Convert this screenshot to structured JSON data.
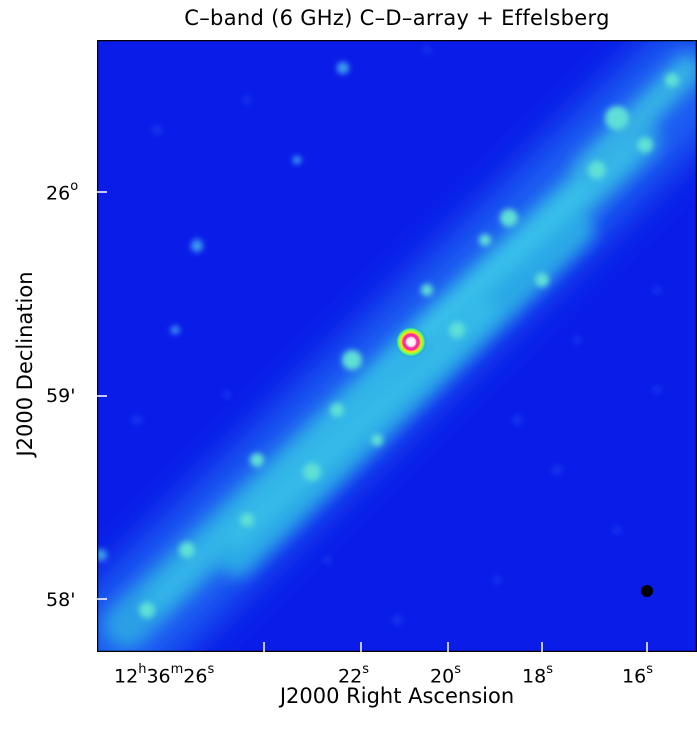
{
  "title": "C–band (6 GHz) C–D–array + Effelsberg",
  "axes": {
    "x_label": "J2000 Right Ascension",
    "y_label": "J2000 Declination",
    "x_ticks": [
      {
        "main": "12",
        "u1": "h",
        "m": "36",
        "u2": "m",
        "s": "26",
        "u3": "s"
      },
      {
        "s": "22",
        "u3": "s"
      },
      {
        "s": "20",
        "u3": "s"
      },
      {
        "s": "18",
        "u3": "s"
      },
      {
        "s": "16",
        "u3": "s"
      }
    ],
    "y_ticks": [
      {
        "main": "26",
        "u": "o"
      },
      {
        "main": "59",
        "u": "'"
      },
      {
        "main": "58",
        "u": "'"
      }
    ]
  },
  "colors": {
    "background": "#0a1de8",
    "emission": "#2fbfe0",
    "core": "#ff2da0",
    "beam": "#000000"
  }
}
